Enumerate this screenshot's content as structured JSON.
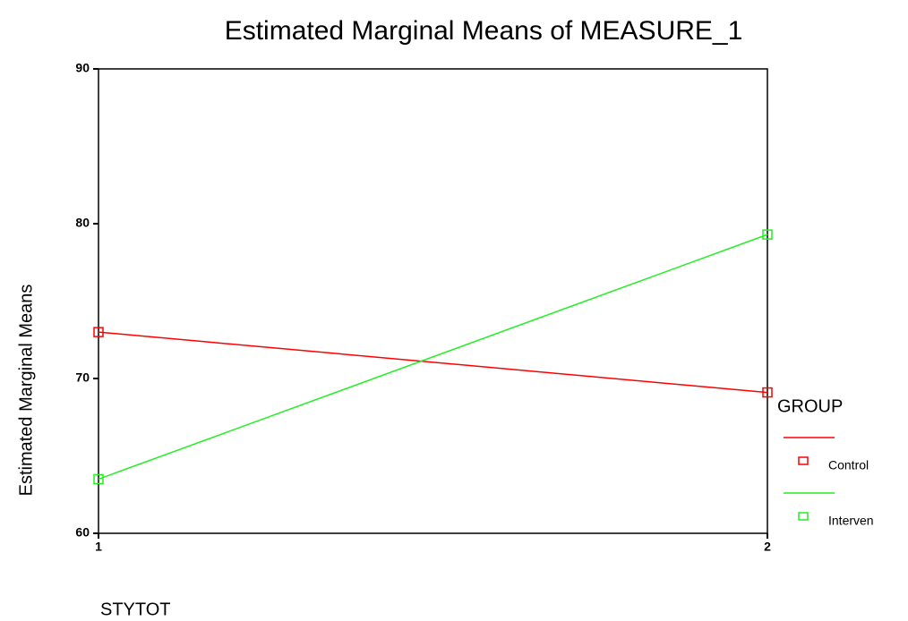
{
  "chart_data": {
    "type": "line",
    "title": "Estimated Marginal Means of MEASURE_1",
    "y_label": "Estimated Marginal Means",
    "x_label": "STYTOT",
    "legend_title": "GROUP",
    "x": [
      1,
      2
    ],
    "xlim": [
      1,
      2
    ],
    "xticks": [
      1,
      2
    ],
    "ylim": [
      60,
      90
    ],
    "yticks": [
      60,
      70,
      80,
      90
    ],
    "series": [
      {
        "name": "Control",
        "color": "#ff0000",
        "values": [
          73.0,
          69.1
        ]
      },
      {
        "name": "Interven",
        "color": "#22ee22",
        "values": [
          63.5,
          79.3
        ]
      }
    ],
    "legend": "right"
  }
}
